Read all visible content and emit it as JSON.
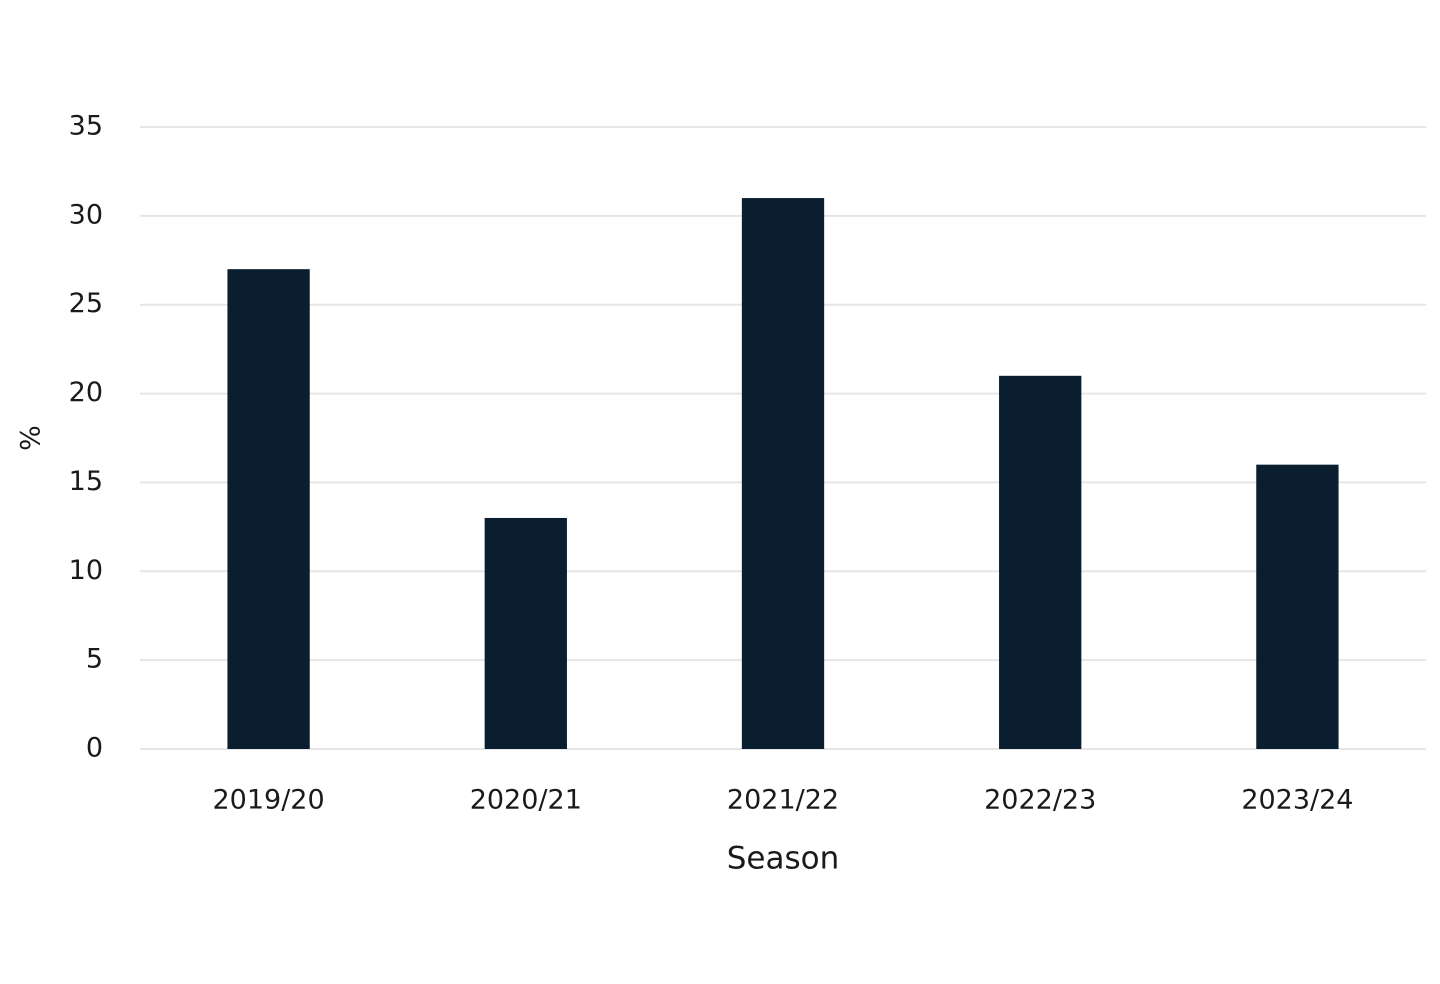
{
  "chart_data": {
    "type": "bar",
    "x_label": "Season",
    "y_label": "%",
    "categories": [
      "2019/20",
      "2020/21",
      "2021/22",
      "2022/23",
      "2023/24"
    ],
    "values": [
      27,
      13,
      31,
      21,
      16
    ],
    "color": "#0a1e30",
    "ylim": [
      0,
      35
    ],
    "yticks": [
      0,
      5,
      10,
      15,
      20,
      25,
      30,
      35
    ],
    "grid": true
  }
}
